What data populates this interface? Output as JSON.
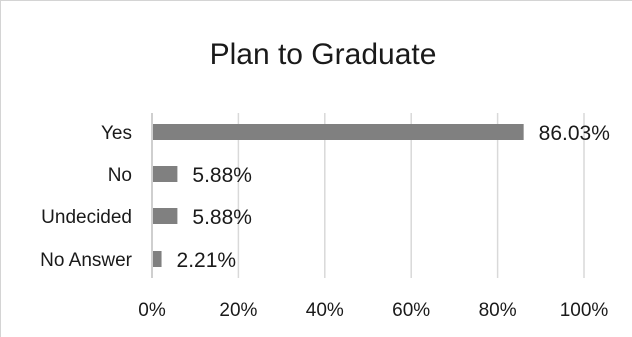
{
  "chart_data": {
    "type": "bar",
    "orientation": "horizontal",
    "title": "Plan to Graduate",
    "categories": [
      "Yes",
      "No",
      "Undecided",
      "No Answer"
    ],
    "values": [
      86.03,
      5.88,
      5.88,
      2.21
    ],
    "data_labels": [
      "86.03%",
      "5.88%",
      "5.88%",
      "2.21%"
    ],
    "xlim": [
      0,
      100
    ],
    "xticks": [
      0,
      20,
      40,
      60,
      80,
      100
    ],
    "xtick_labels": [
      "0%",
      "20%",
      "40%",
      "60%",
      "80%",
      "100%"
    ],
    "xlabel": "",
    "ylabel": "",
    "grid": true,
    "legend": "none",
    "colors": {
      "bar": "#808080",
      "grid": "#d9d9d9",
      "axis": "#bfbfbf",
      "text": "#1a1a1a"
    }
  }
}
